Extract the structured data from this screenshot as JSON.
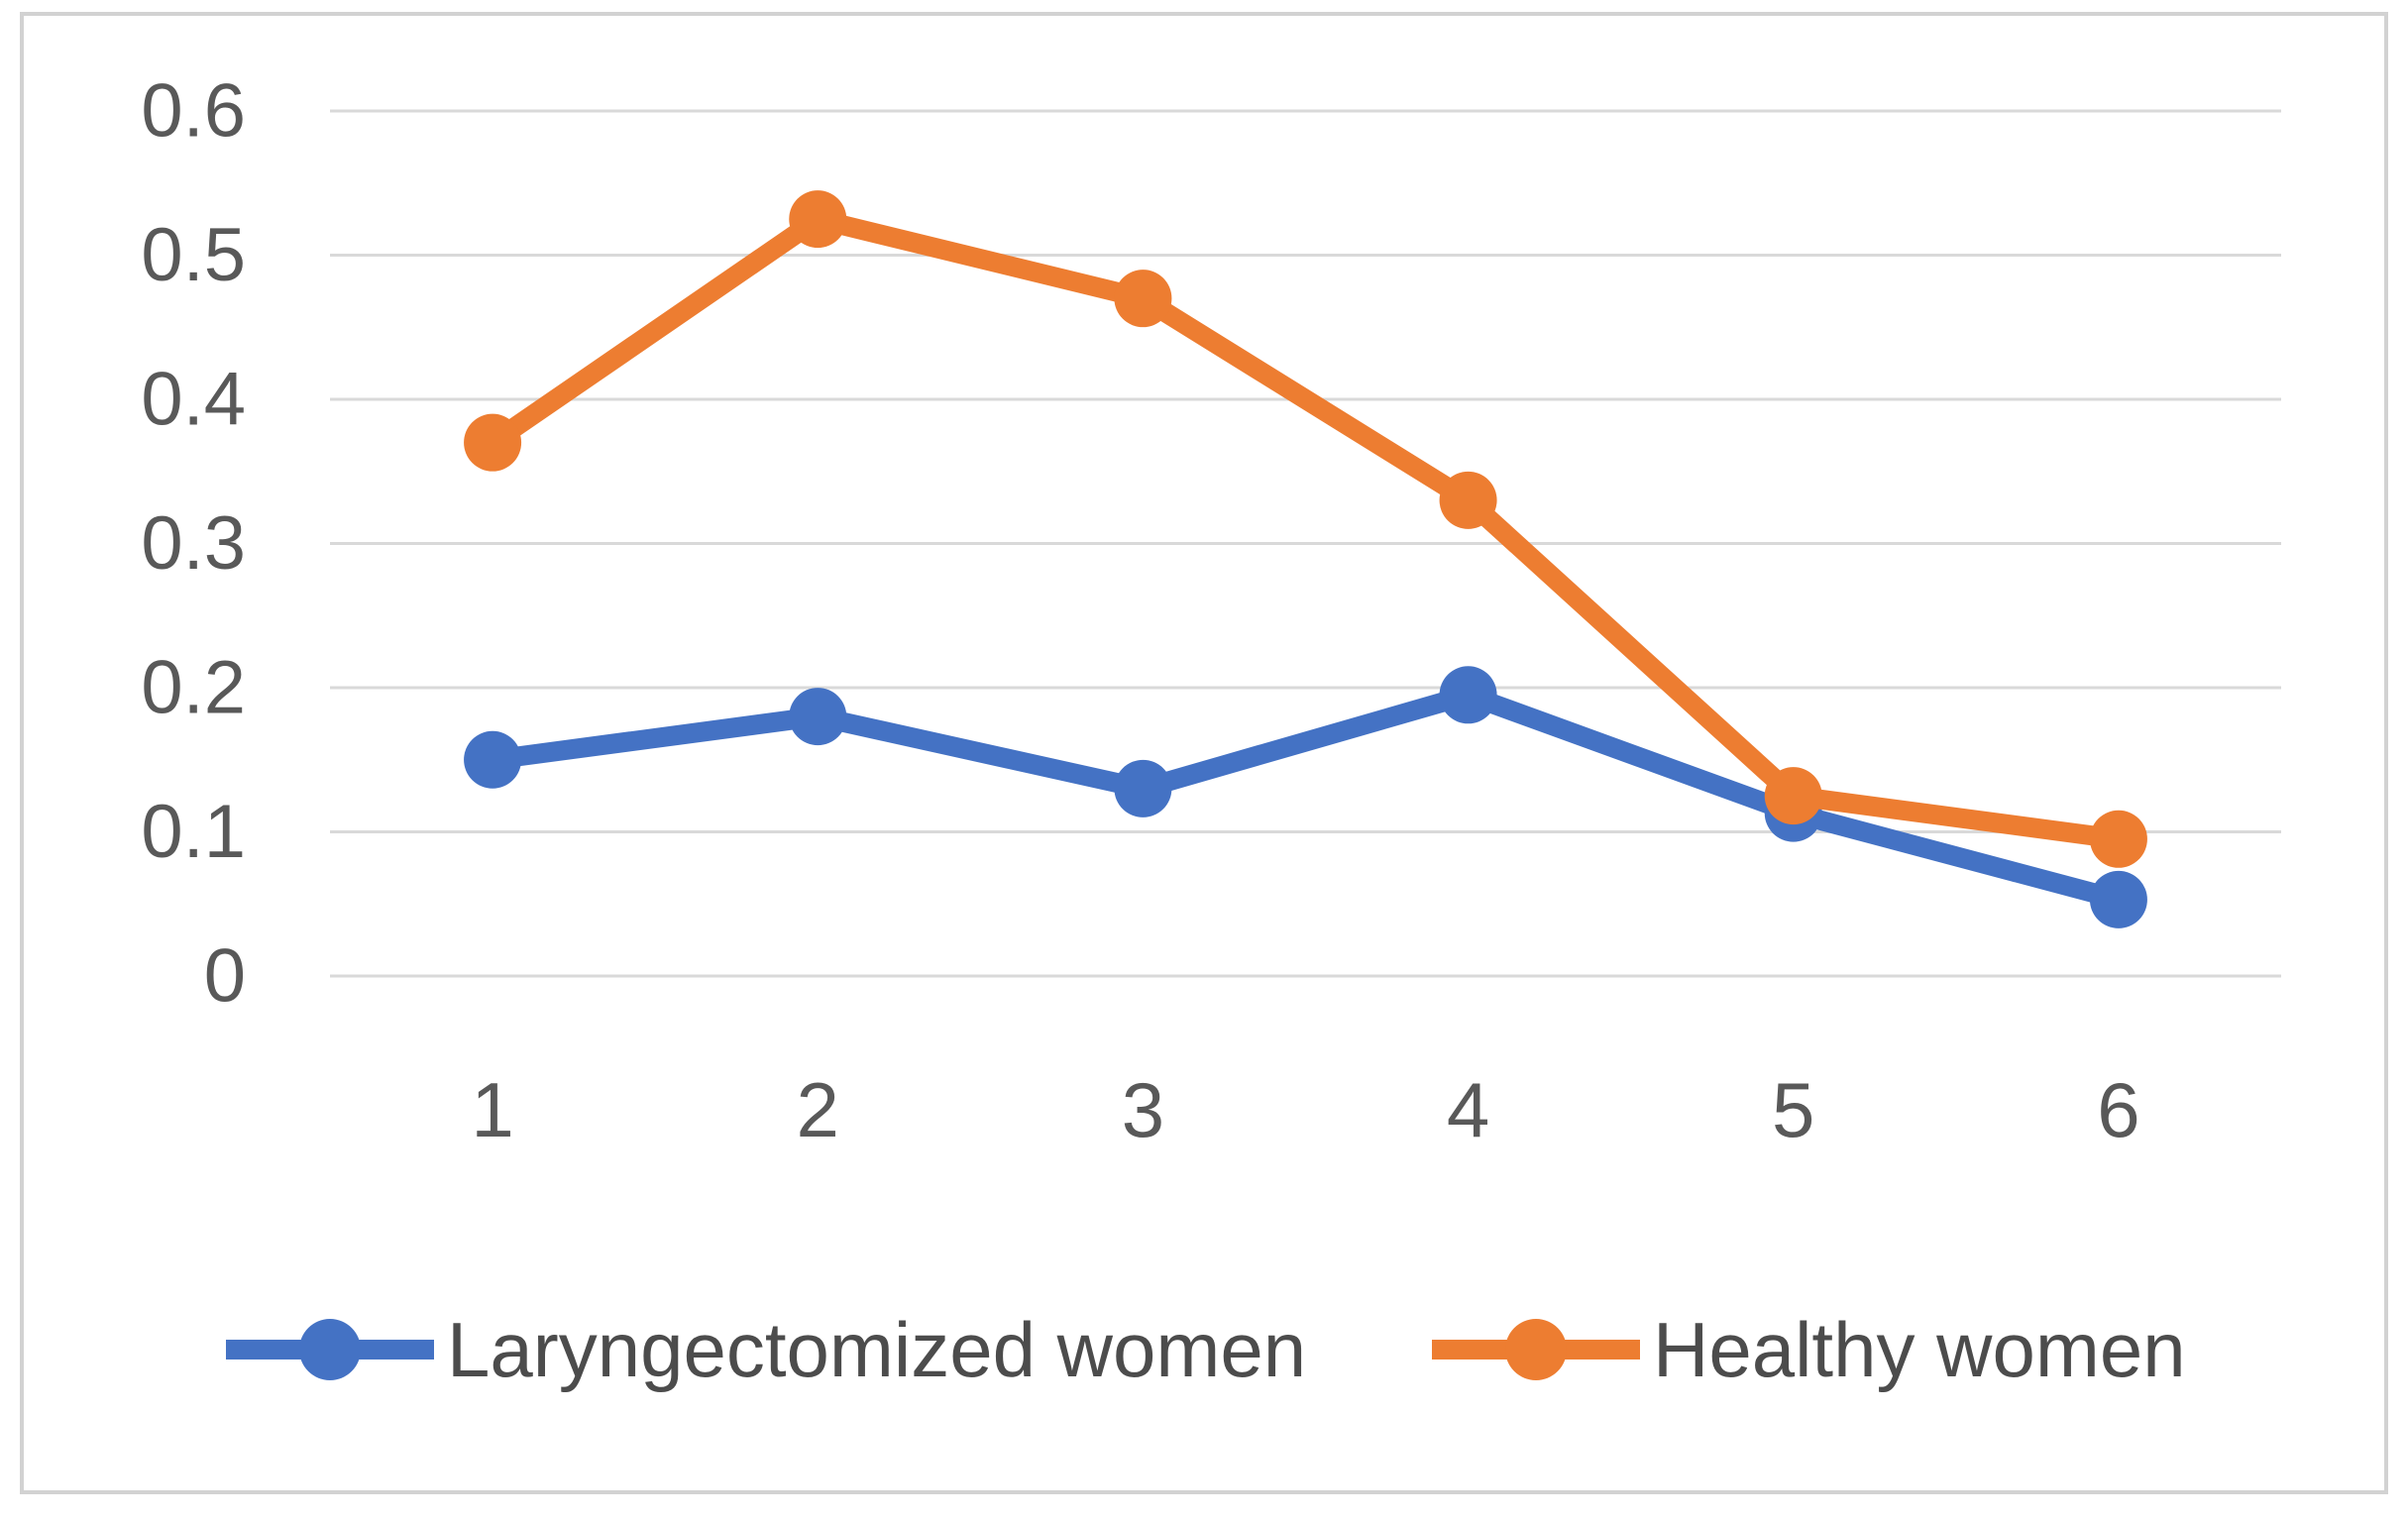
{
  "chart_data": {
    "type": "line",
    "title": "",
    "xlabel": "",
    "ylabel": "",
    "categories": [
      "1",
      "2",
      "3",
      "4",
      "5",
      "6"
    ],
    "series": [
      {
        "name": "Laryngectomized women",
        "color": "#4472C4",
        "values": [
          0.15,
          0.18,
          0.13,
          0.195,
          0.113,
          0.053
        ]
      },
      {
        "name": "Healthy women",
        "color": "#ED7D31",
        "values": [
          0.37,
          0.525,
          0.47,
          0.33,
          0.125,
          0.095
        ]
      }
    ],
    "ylim": [
      0,
      0.6
    ],
    "ytick_labels": [
      "0",
      "0.1",
      "0.2",
      "0.3",
      "0.4",
      "0.5",
      "0.6"
    ],
    "grid": true,
    "legend_position": "bottom",
    "marker": "circle"
  },
  "colors": {
    "background": "#FFFFFF",
    "frame_border": "#D2D2D2",
    "grid": "#D9D9D9",
    "tick_text": "#595959",
    "legend_text": "#4C4C4C"
  }
}
